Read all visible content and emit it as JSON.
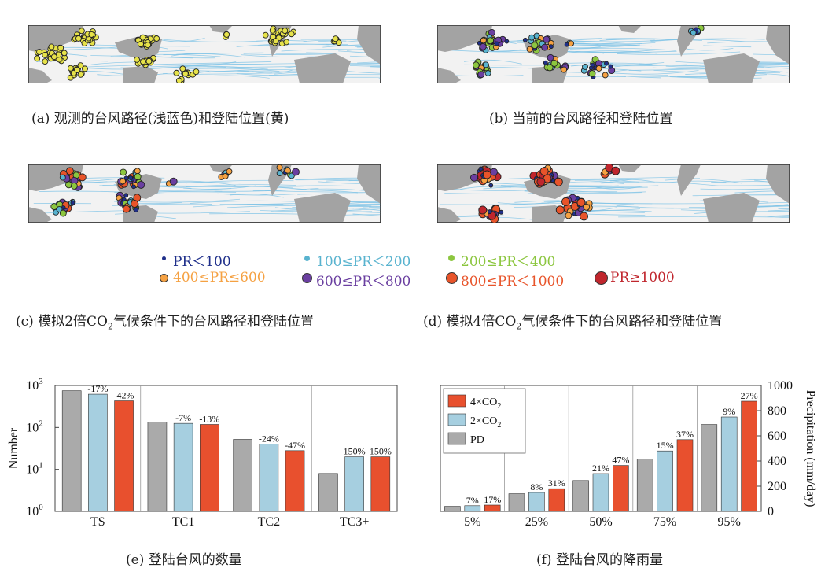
{
  "captions": {
    "a": "(a) 观测的台风路径(浅蓝色)和登陆位置(黄)",
    "b": "(b) 当前的台风路径和登陆位置",
    "c_pre": "(c) 模拟2倍CO",
    "c_post": "气候条件下的台风路径和登陆位置",
    "d_pre": "(d) 模拟4倍CO",
    "d_post": "气候条件下的台风路径和登陆位置",
    "sub2": "2",
    "e": "(e) 登陆台风的数量",
    "f": "(f) 登陆台风的降雨量"
  },
  "legend": [
    {
      "label": "PR＜100",
      "color": "#1f2f8a",
      "size": 5
    },
    {
      "label": "100≤PR＜200",
      "color": "#59b3cf",
      "size": 7
    },
    {
      "label": "200≤PR＜400",
      "color": "#8cc63f",
      "size": 8
    },
    {
      "label": "400≤PR≤600",
      "color": "#f5a142",
      "size": 9
    },
    {
      "label": "600≤PR＜800",
      "color": "#6a3fa0",
      "size": 11
    },
    {
      "label": "800≤PR＜1000",
      "color": "#e8542a",
      "size": 13
    },
    {
      "label": "PR≥1000",
      "color": "#c0262d",
      "size": 15
    }
  ],
  "colors": {
    "gray": "#aaaaaa",
    "blue": "#a6cfe0",
    "red": "#e8502e",
    "land": "#a3a3a3",
    "ocean": "#f2f2f2",
    "track": "#7ec3e6"
  },
  "chart_data": [
    {
      "type": "bar",
      "title": "(e) 登陆台风的数量",
      "ylabel": "Number",
      "yscale": "log",
      "ylim": [
        1,
        1000
      ],
      "yticks": [
        {
          "v": 1,
          "label": "10",
          "exp": "0"
        },
        {
          "v": 10,
          "label": "10",
          "exp": "1"
        },
        {
          "v": 100,
          "label": "10",
          "exp": "2"
        },
        {
          "v": 1000,
          "label": "10",
          "exp": "3"
        }
      ],
      "categories": [
        "TS",
        "TC1",
        "TC2",
        "TC3+"
      ],
      "series": [
        {
          "values": [
            750,
            135,
            52,
            8
          ]
        },
        {
          "values": [
            620,
            125,
            40,
            20
          ]
        },
        {
          "values": [
            430,
            118,
            28,
            20
          ]
        }
      ],
      "labels": [
        [
          null,
          "-17%",
          "-42%"
        ],
        [
          null,
          "-7%",
          "-13%"
        ],
        [
          null,
          "-24%",
          "-47%"
        ],
        [
          null,
          "150%",
          "150%"
        ]
      ]
    },
    {
      "type": "bar",
      "title": "(f) 登陆台风的降雨量",
      "ylabel": "Precipitation (mm/day)",
      "ylim": [
        0,
        1000
      ],
      "yticks": [
        0,
        200,
        400,
        600,
        800,
        1000
      ],
      "categories": [
        "5%",
        "25%",
        "50%",
        "75%",
        "95%"
      ],
      "legend": [
        {
          "label": "4×CO",
          "sub": "2"
        },
        {
          "label": "2×CO",
          "sub": "2"
        },
        {
          "label": "PD",
          "sub": ""
        }
      ],
      "series": [
        {
          "values": [
            40,
            140,
            245,
            415,
            690
          ]
        },
        {
          "values": [
            45,
            150,
            300,
            480,
            750
          ]
        },
        {
          "values": [
            50,
            180,
            365,
            570,
            875
          ]
        }
      ],
      "labels": [
        [
          null,
          "7%",
          "17%"
        ],
        [
          null,
          "8%",
          "31%"
        ],
        [
          null,
          "21%",
          "47%"
        ],
        [
          null,
          "15%",
          "37%"
        ],
        [
          null,
          "9%",
          "27%"
        ]
      ]
    }
  ]
}
